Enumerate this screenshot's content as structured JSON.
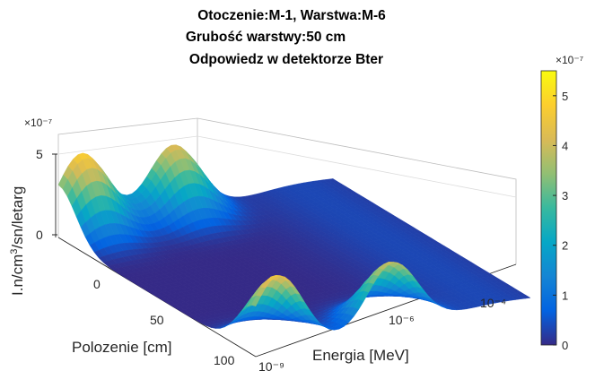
{
  "chart_data": {
    "type": "surface",
    "title": [
      "Otoczenie:M-1, Warstwa:M-6",
      "Grubość warstwy:50 cm",
      "Odpowiedz w detektorze Bter"
    ],
    "xlabel": "Polozenie [cm]",
    "ylabel": "Energia [MeV]",
    "zlabel": "I.n/cm3/sn/letarg",
    "z_exponent": "×10⁻⁷",
    "x_ticks": [
      "0",
      "50",
      "100"
    ],
    "y_ticks": [
      "10⁻⁹",
      "10⁻⁶",
      "10⁻⁴"
    ],
    "z_ticks": [
      "0",
      "5"
    ],
    "colorbar": {
      "exponent": "×10⁻⁷",
      "ticks": [
        "0",
        "1",
        "2",
        "3",
        "4",
        "5"
      ],
      "range": [
        0,
        5.5
      ],
      "colormap": [
        "#352a87",
        "#0363e1",
        "#1485d4",
        "#06a7c6",
        "#38b99e",
        "#92bf73",
        "#d9ba56",
        "#fcce2e",
        "#f9fb0e"
      ]
    },
    "peaks": [
      {
        "position_cm": 0,
        "energy_log10_MeV": -9,
        "value_e7": 4.8
      },
      {
        "position_cm": 0,
        "energy_log10_MeV": -7,
        "value_e7": 4.2
      },
      {
        "position_cm": 100,
        "energy_log10_MeV": -9,
        "value_e7": 4.6
      },
      {
        "position_cm": 100,
        "energy_log10_MeV": -6.5,
        "value_e7": 4.0
      }
    ]
  }
}
